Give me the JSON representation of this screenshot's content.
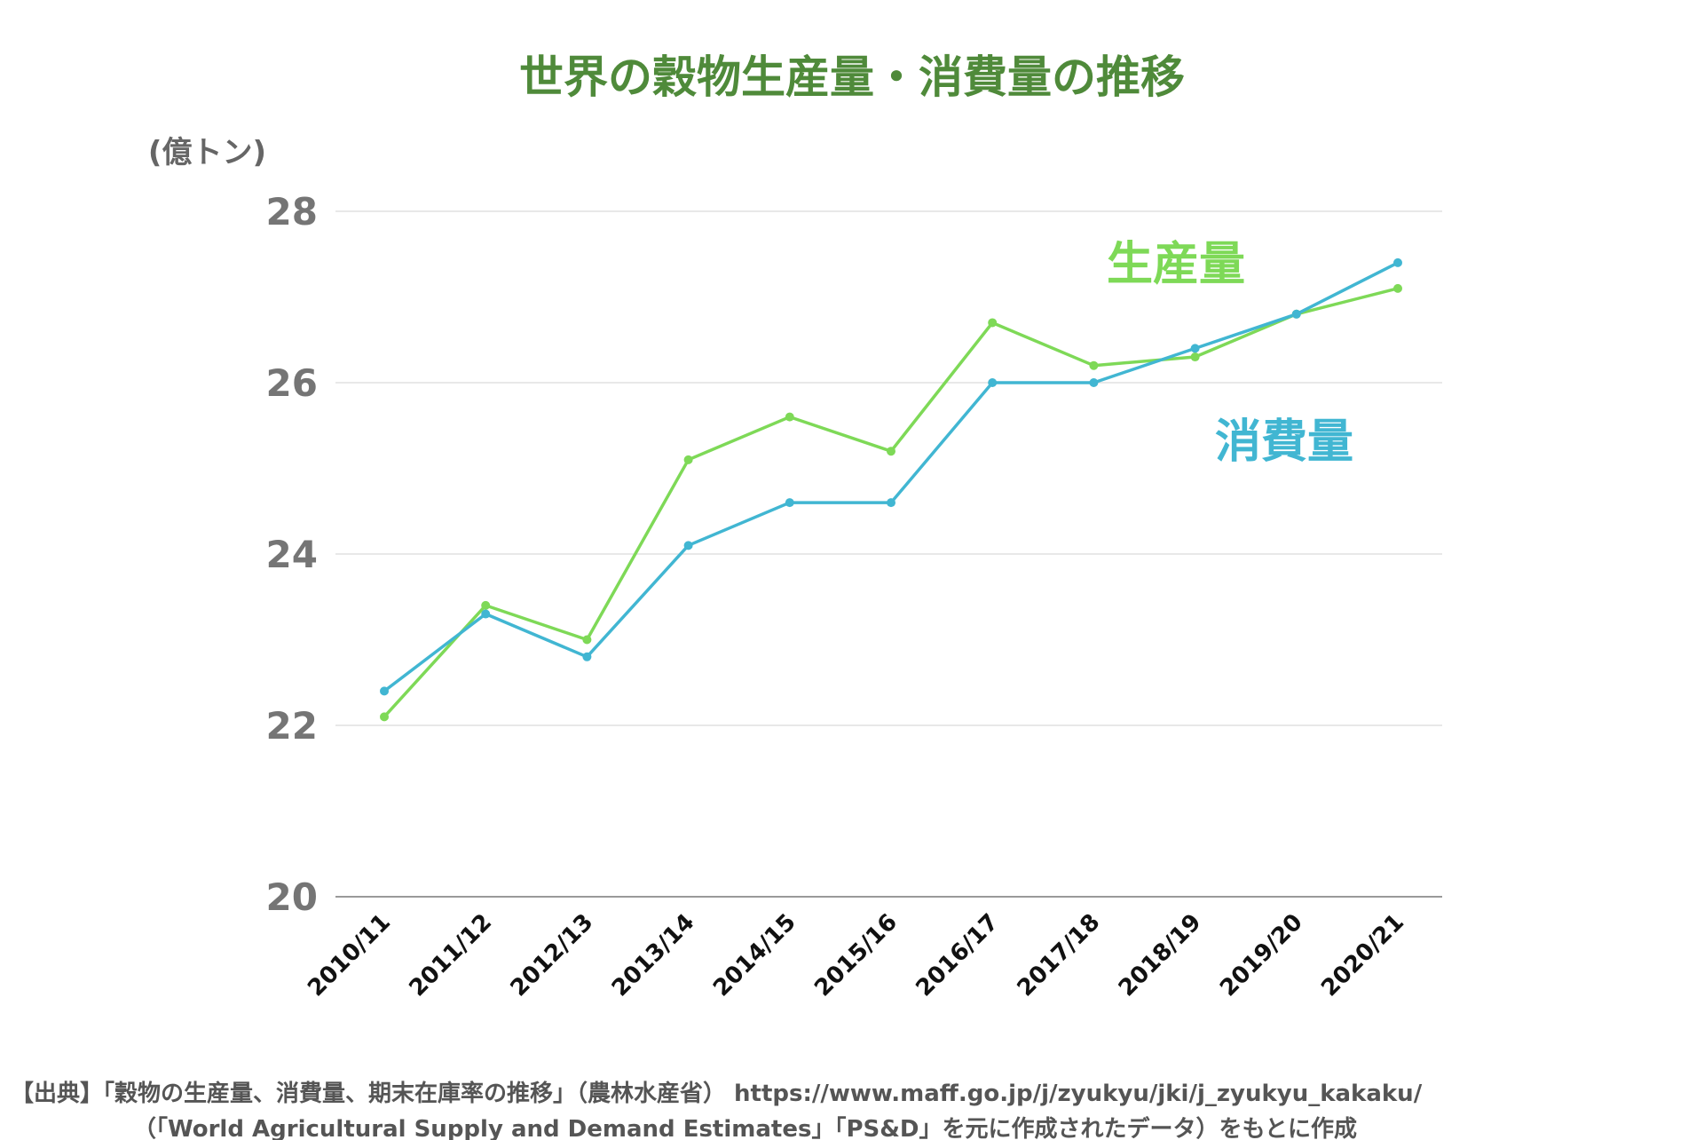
{
  "title": "世界の穀物生産量・消費量の推移",
  "colors": {
    "title": "#4f8a3a",
    "production": "#7ed957",
    "consumption": "#41b6d2",
    "grid": "#d9d9d9",
    "axis": "#9a9a9a"
  },
  "chart_data": {
    "type": "line",
    "title": "世界の穀物生産量・消費量の推移",
    "ylabel": "(億トン)",
    "xlabel": "",
    "ylim": [
      20,
      28
    ],
    "yticks": [
      "20",
      "22",
      "24",
      "26",
      "28"
    ],
    "grid": true,
    "categories": [
      "2010/11",
      "2011/12",
      "2012/13",
      "2013/14",
      "2014/15",
      "2015/16",
      "2016/17",
      "2017/18",
      "2018/19",
      "2019/20",
      "2020/21"
    ],
    "series": [
      {
        "name": "生産量",
        "values": [
          22.1,
          23.4,
          23.0,
          25.1,
          25.6,
          25.2,
          26.7,
          26.2,
          26.3,
          26.8,
          27.1
        ]
      },
      {
        "name": "消費量",
        "values": [
          22.4,
          23.3,
          22.8,
          24.1,
          24.6,
          24.6,
          26.0,
          26.0,
          26.4,
          26.8,
          27.4
        ]
      }
    ]
  },
  "source": {
    "line1": "【出典】「穀物の生産量、消費量、期末在庫率の推移」（農林水産省） https://www.maff.go.jp/j/zyukyu/jki/j_zyukyu_kakaku/",
    "line2": "（「World Agricultural Supply and Demand Estimates」「PS&D」を元に作成されたデータ）をもとに作成"
  }
}
